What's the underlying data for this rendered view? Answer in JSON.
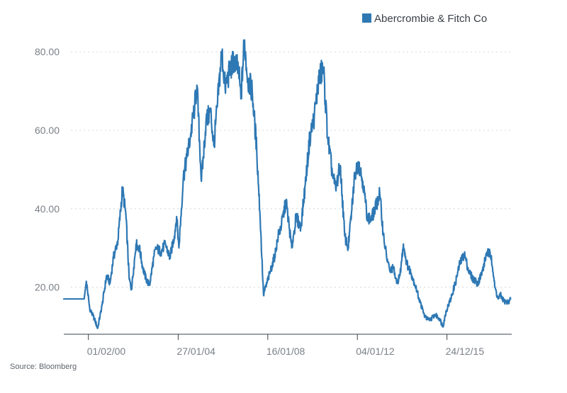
{
  "chart_data": {
    "type": "line",
    "title": "",
    "xlabel": "",
    "ylabel": "",
    "ylim": [
      8,
      86
    ],
    "grid": {
      "y": "dotted",
      "x": false
    },
    "legend_position": "top-right",
    "x_tick_labels": [
      "01/02/00",
      "27/01/04",
      "16/01/08",
      "04/01/12",
      "24/12/15"
    ],
    "y_ticks": [
      20,
      40,
      60,
      80
    ],
    "y_tick_labels": [
      "20.00",
      "40.00",
      "60.00",
      "80.00"
    ],
    "series": [
      {
        "name": "Abercrombie & Fitch Co",
        "color": "#2e78b4",
        "x": [
          1999.0,
          1999.9,
          2000.0,
          2000.15,
          2000.35,
          2000.5,
          2000.7,
          2000.9,
          2001.05,
          2001.2,
          2001.4,
          2001.6,
          2001.75,
          2001.9,
          2002.0,
          2002.1,
          2002.2,
          2002.35,
          2002.5,
          2002.65,
          2002.8,
          2003.0,
          2003.1,
          2003.3,
          2003.5,
          2003.7,
          2003.9,
          2004.0,
          2004.1,
          2004.3,
          2004.45,
          2004.6,
          2004.8,
          2004.9,
          2005.1,
          2005.3,
          2005.5,
          2005.65,
          2005.8,
          2006.0,
          2006.15,
          2006.35,
          2006.55,
          2006.75,
          2006.85,
          2007.0,
          2007.15,
          2007.35,
          2007.55,
          2007.7,
          2007.85,
          2008.0,
          2008.15,
          2008.35,
          2008.5,
          2008.65,
          2008.85,
          2009.1,
          2009.3,
          2009.5,
          2009.7,
          2009.9,
          2010.1,
          2010.3,
          2010.5,
          2010.7,
          2010.9,
          2011.05,
          2011.25,
          2011.45,
          2011.6,
          2011.75,
          2011.9,
          2012.05,
          2012.25,
          2012.45,
          2012.6,
          2012.8,
          2013.0,
          2013.15,
          2013.3,
          2013.45,
          2013.6,
          2013.75,
          2013.9,
          2014.05,
          2014.2,
          2014.4,
          2014.6,
          2014.8,
          2015.0,
          2015.2,
          2015.45,
          2015.65,
          2015.8,
          2015.95,
          2016.15,
          2016.35,
          2016.55,
          2016.75,
          2016.95,
          2017.15,
          2017.35,
          2017.55,
          2017.75,
          2017.95,
          2018.1,
          2018.25,
          2018.35,
          2018.5,
          2018.65,
          2018.8
        ],
        "values": [
          17.0,
          17.0,
          21.5,
          14.5,
          12.0,
          9.5,
          15.5,
          23.0,
          21.0,
          27.5,
          32.0,
          45.0,
          38.5,
          22.0,
          19.5,
          25.0,
          31.0,
          30.0,
          25.0,
          22.0,
          20.5,
          28.0,
          30.0,
          29.0,
          31.0,
          27.5,
          33.0,
          38.0,
          30.0,
          48.0,
          53.0,
          58.0,
          66.0,
          71.5,
          47.0,
          62.0,
          65.0,
          56.0,
          66.0,
          80.0,
          71.0,
          75.0,
          78.0,
          75.0,
          68.0,
          83.0,
          73.0,
          70.0,
          55.0,
          38.0,
          18.0,
          21.0,
          24.0,
          28.0,
          33.0,
          36.0,
          42.0,
          30.0,
          38.0,
          35.0,
          46.0,
          58.0,
          63.5,
          73.0,
          76.0,
          58.0,
          49.0,
          45.0,
          51.0,
          33.0,
          30.0,
          39.0,
          49.0,
          52.0,
          47.0,
          38.0,
          37.0,
          40.0,
          44.0,
          34.0,
          28.0,
          24.0,
          25.0,
          21.0,
          23.0,
          31.0,
          26.0,
          23.5,
          20.0,
          16.0,
          12.5,
          11.5,
          13.0,
          12.0,
          10.0,
          14.0,
          17.0,
          21.0,
          26.0,
          28.5,
          24.0,
          22.0,
          21.0,
          24.0,
          29.0,
          28.0,
          20.0,
          17.0,
          18.0,
          16.5,
          16.0,
          17.0
        ]
      }
    ]
  },
  "source_note": "Source: Bloomberg"
}
